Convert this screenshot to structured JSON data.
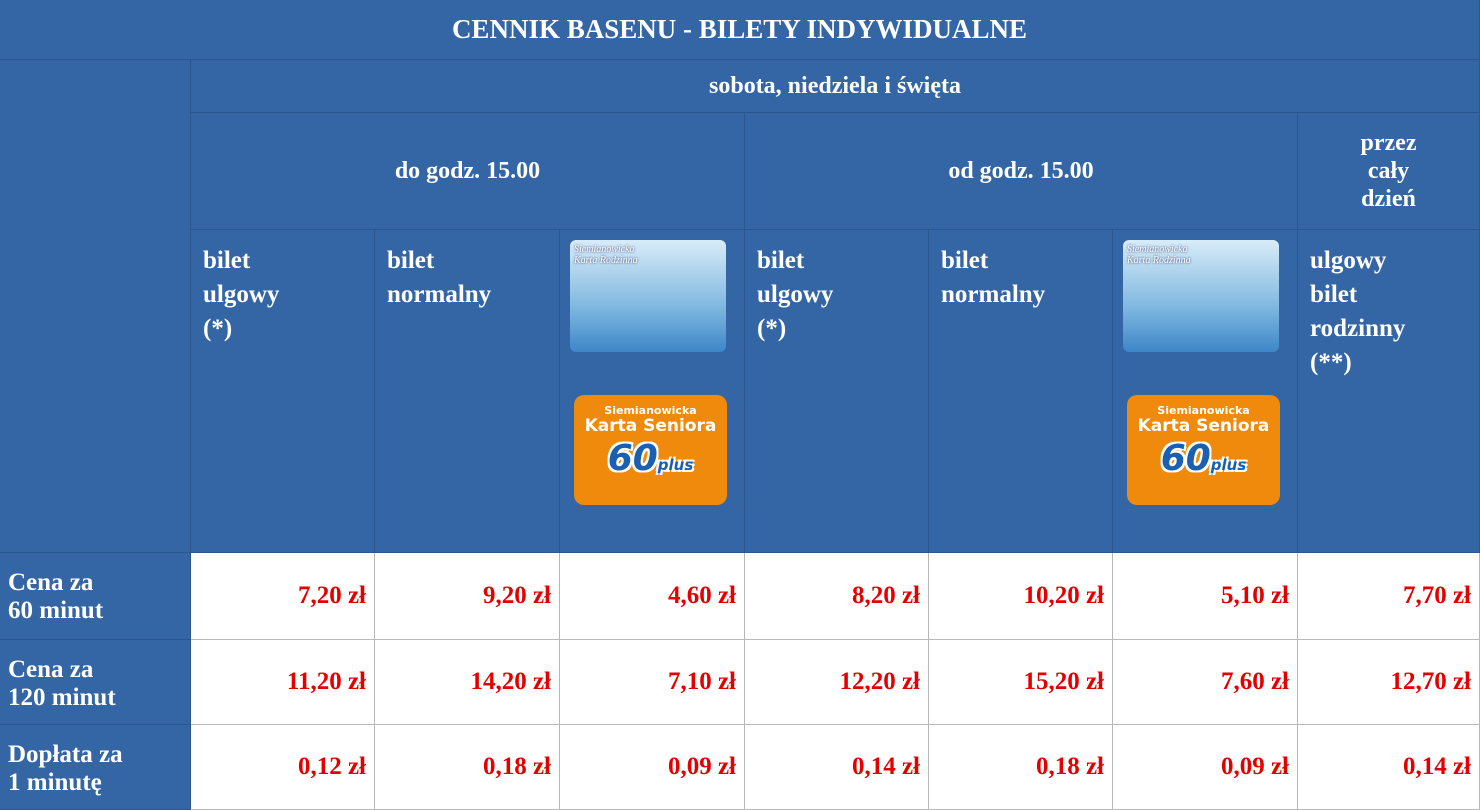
{
  "table": {
    "title": "CENNIK BASENU - BILETY INDYWIDUALNE",
    "group_header": "sobota, niedziela i święta",
    "periods": [
      "do godz. 15.00",
      "od godz. 15.00",
      "przez\ncały\ndzień"
    ],
    "columns": [
      "bilet\nulgowy\n(*)",
      "bilet\nnormalny",
      null,
      "bilet\nulgowy\n(*)",
      "bilet\nnormalny",
      null,
      "ulgowy\nbilet\nrodzinny\n(**)"
    ],
    "cards": {
      "family": "Siemianowicka\nKarta Rodzinna",
      "senior_top": "Siemianowicka",
      "senior_name": "Karta Seniora",
      "senior_number": "60",
      "senior_plus": "plus"
    },
    "rows": [
      {
        "label": "Cena za\n60 minut",
        "cells": [
          "7,20 zł",
          "9,20 zł",
          "4,60 zł",
          "8,20 zł",
          "10,20 zł",
          "5,10 zł",
          "7,70 zł"
        ]
      },
      {
        "label": "Cena za\n120 minut",
        "cells": [
          "11,20 zł",
          "14,20 zł",
          "7,10 zł",
          "12,20 zł",
          "15,20 zł",
          "7,60 zł",
          "12,70 zł"
        ]
      },
      {
        "label": "Dopłata za\n1 minutę",
        "cells": [
          "0,12 zł",
          "0,18 zł",
          "0,09 zł",
          "0,14 zł",
          "0,18 zł",
          "0,09 zł",
          "0,14 zł"
        ]
      }
    ]
  }
}
